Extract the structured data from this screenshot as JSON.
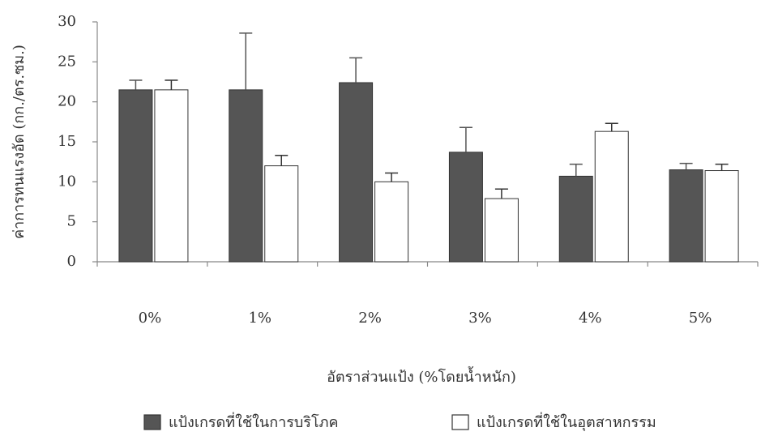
{
  "chart_data": {
    "type": "bar",
    "y_label": "ค่าการทนแรงอัด (กก./ตร.ซม.)",
    "x_label": "อัตราส่วนแป้ง (%โดยน้ำหนัก)",
    "categories": [
      "0%",
      "1%",
      "2%",
      "3%",
      "4%",
      "5%"
    ],
    "series": [
      {
        "name": "แป้งเกรดที่ใช้ในการบริโภค",
        "color": "#555555",
        "values": [
          21.5,
          21.5,
          22.4,
          13.7,
          10.7,
          11.5
        ],
        "errors": [
          1.2,
          7.1,
          3.1,
          3.1,
          1.5,
          0.8
        ]
      },
      {
        "name": "แป้งเกรดที่ใช้ในอุตสาหกรรม",
        "color": "#ffffff",
        "values": [
          21.5,
          12.0,
          10.0,
          7.9,
          16.3,
          11.4
        ],
        "errors": [
          1.2,
          1.3,
          1.1,
          1.2,
          1.0,
          0.8
        ]
      }
    ],
    "ylim": [
      0,
      30
    ],
    "yticks": [
      0,
      5,
      10,
      15,
      20,
      25,
      30
    ],
    "legend": "bottom"
  }
}
